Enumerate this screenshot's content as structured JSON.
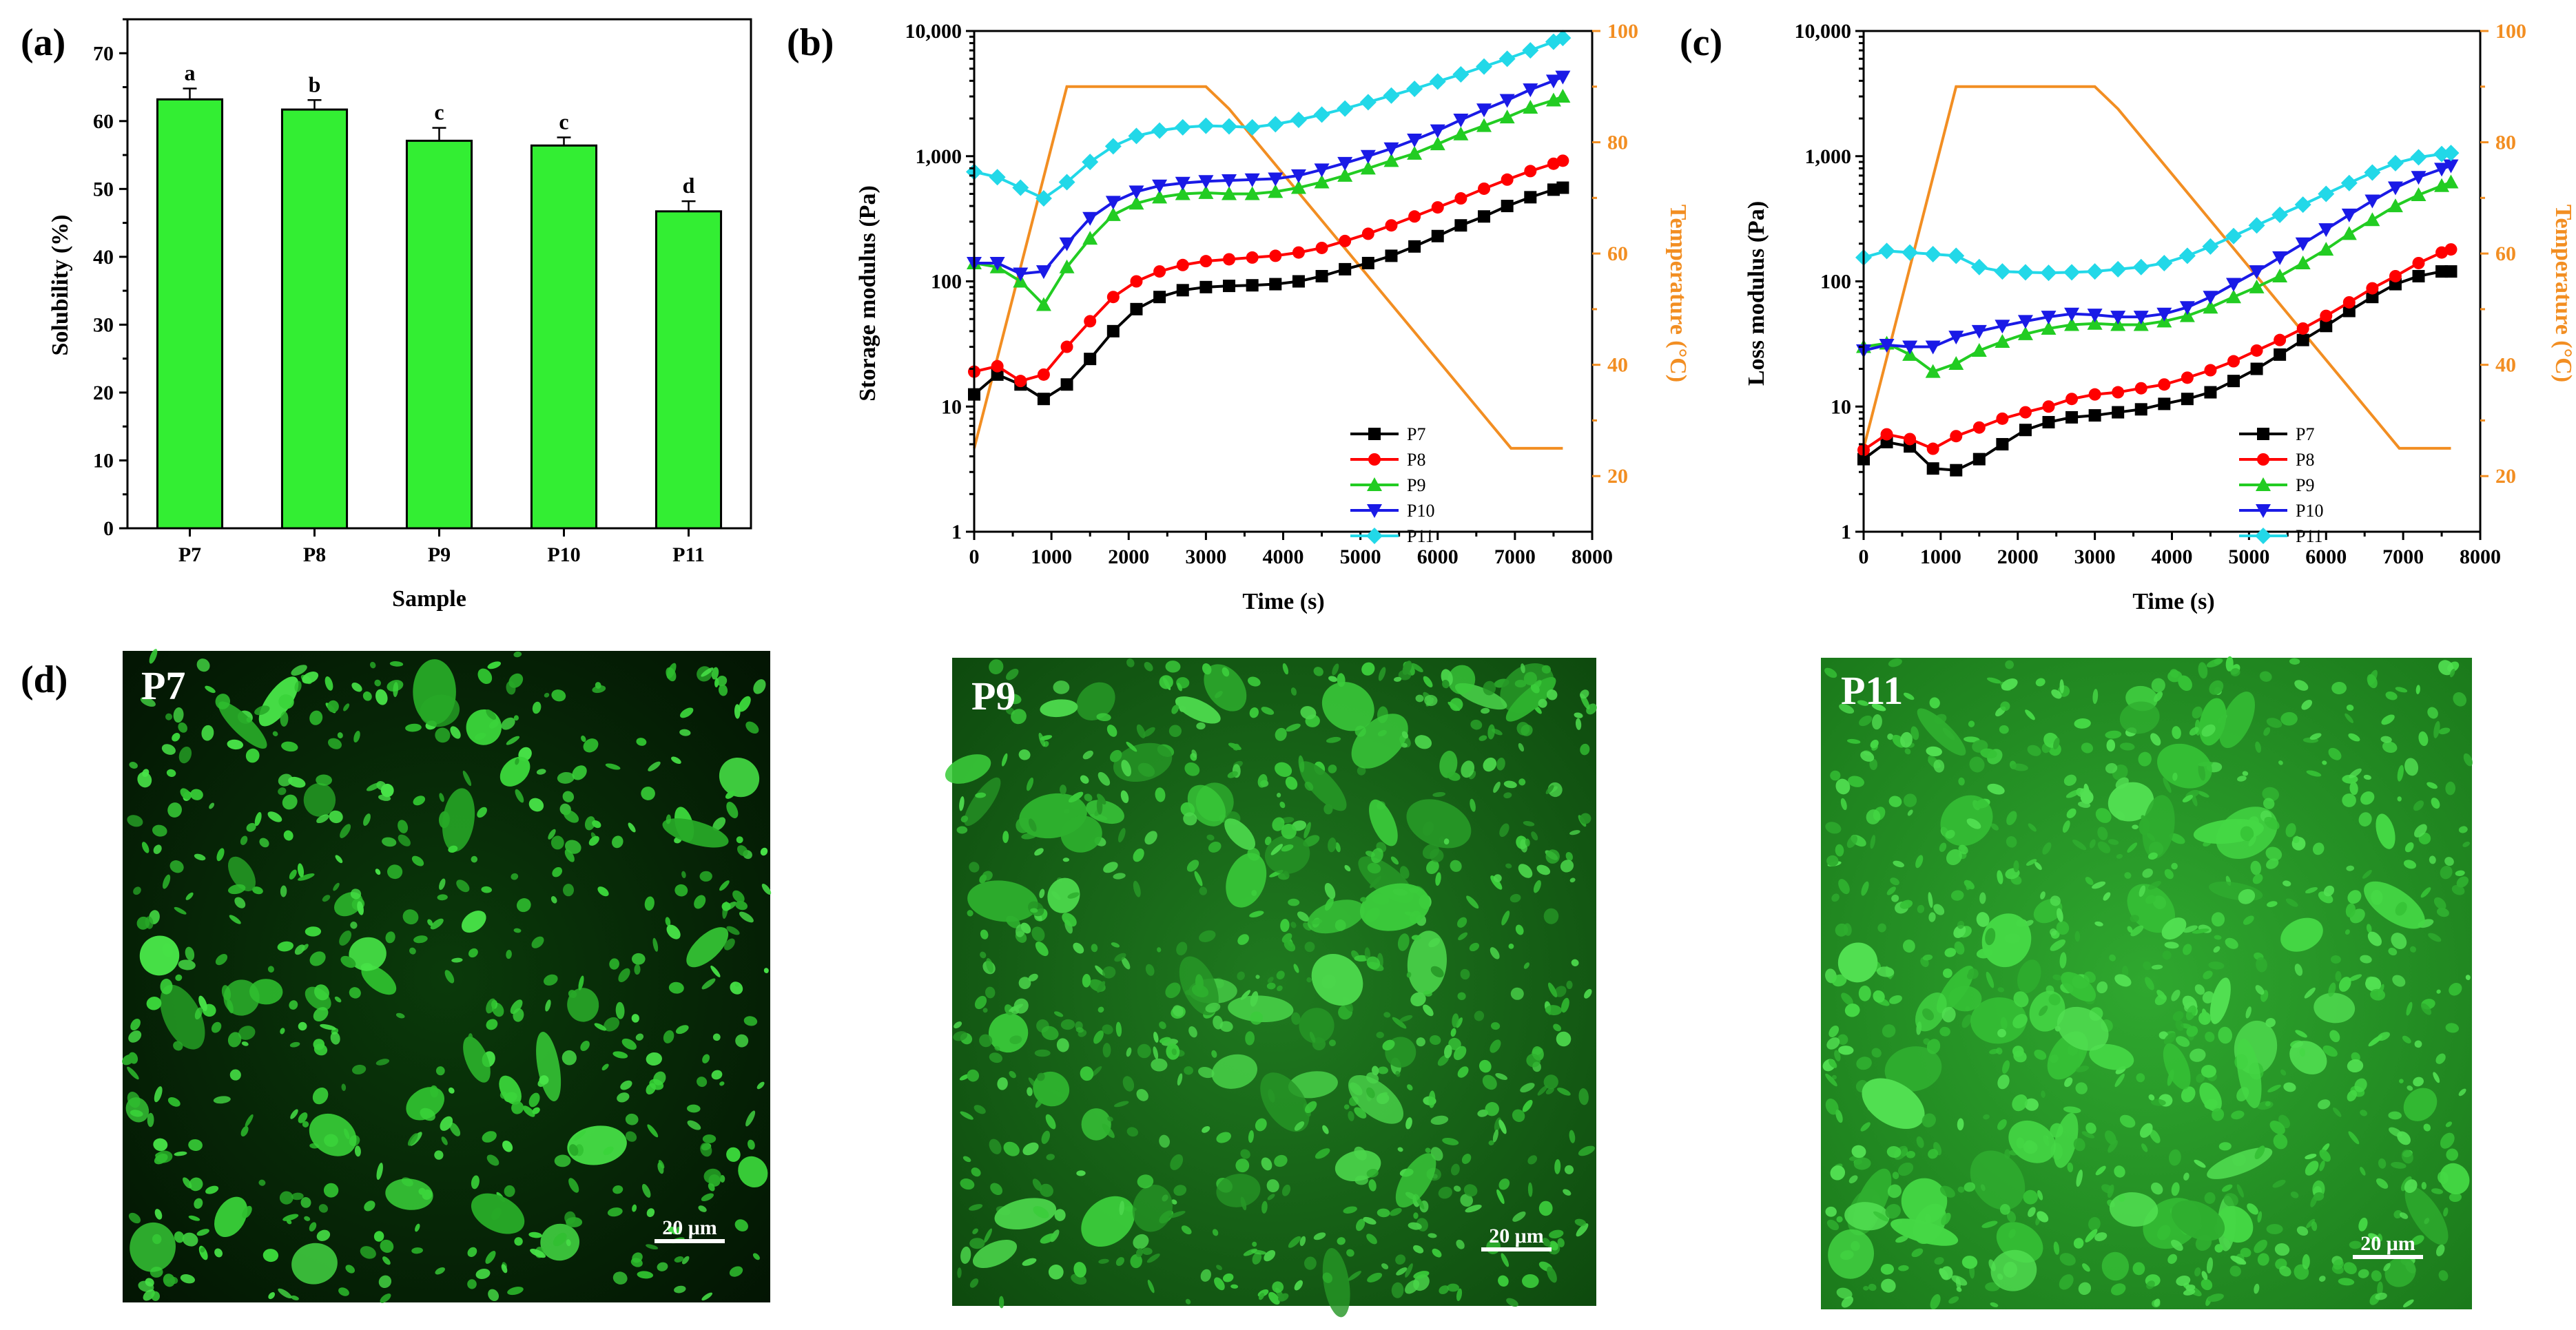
{
  "chart_data": [
    {
      "panel": "(a)",
      "type": "bar",
      "title": "",
      "xlabel": "Sample",
      "ylabel": "Solubility (%)",
      "ylim": [
        0,
        75
      ],
      "yticks": [
        0,
        10,
        20,
        30,
        40,
        50,
        60,
        70
      ],
      "categories": [
        "P7",
        "P8",
        "P9",
        "P10",
        "P11"
      ],
      "values": [
        63.2,
        61.7,
        57.1,
        56.4,
        46.7
      ],
      "errors": [
        1.6,
        1.4,
        1.9,
        1.2,
        1.5
      ],
      "significance_letters": [
        "a",
        "b",
        "c",
        "c",
        "d"
      ],
      "bar_color": "#33ee33"
    },
    {
      "panel": "(b)",
      "type": "line",
      "xlabel": "Time (s)",
      "ylabel": "Storage modulus (Pa)",
      "y2label": "Temperature (°C)",
      "xlim": [
        0,
        8000
      ],
      "ylim": [
        1,
        10000
      ],
      "yscale": "log",
      "y2lim": [
        10,
        100
      ],
      "xticks": [
        0,
        1000,
        2000,
        3000,
        4000,
        5000,
        6000,
        7000,
        8000
      ],
      "yticks": [
        1,
        10,
        100,
        1000,
        10000
      ],
      "yticklabels": [
        "1",
        "10",
        "100",
        "1,000",
        "10,000"
      ],
      "y2ticks": [
        20,
        40,
        60,
        80,
        100
      ],
      "legend_position": "bottom-right",
      "x": [
        0,
        300,
        600,
        900,
        1200,
        1500,
        1800,
        2100,
        2400,
        2700,
        3000,
        3300,
        3600,
        3900,
        4200,
        4500,
        4800,
        5100,
        5400,
        5700,
        6000,
        6300,
        6600,
        6900,
        7200,
        7500,
        7620
      ],
      "series": [
        {
          "name": "P7",
          "color": "#000000",
          "marker": "square",
          "values": [
            12.5,
            18,
            15,
            11.5,
            15,
            24,
            40,
            60,
            75,
            85,
            90,
            92,
            93,
            95,
            100,
            110,
            125,
            140,
            160,
            190,
            230,
            280,
            330,
            400,
            470,
            540,
            560
          ]
        },
        {
          "name": "P8",
          "color": "#ff0000",
          "marker": "circle",
          "values": [
            19,
            21,
            16,
            18,
            30,
            48,
            75,
            100,
            120,
            135,
            145,
            150,
            155,
            160,
            170,
            185,
            210,
            240,
            280,
            330,
            390,
            460,
            550,
            650,
            760,
            870,
            920
          ]
        },
        {
          "name": "P9",
          "color": "#22cc22",
          "marker": "triangle-up",
          "values": [
            140,
            130,
            100,
            65,
            130,
            220,
            340,
            420,
            470,
            500,
            510,
            500,
            500,
            520,
            560,
            620,
            700,
            800,
            920,
            1050,
            1250,
            1500,
            1750,
            2050,
            2450,
            2800,
            3000
          ]
        },
        {
          "name": "P10",
          "color": "#1a1ae6",
          "marker": "triangle-down",
          "values": [
            140,
            140,
            115,
            120,
            200,
            320,
            430,
            520,
            580,
            610,
            630,
            640,
            650,
            660,
            700,
            780,
            880,
            1000,
            1150,
            1350,
            1600,
            1950,
            2350,
            2800,
            3400,
            4000,
            4300
          ]
        },
        {
          "name": "P11",
          "color": "#22d8e8",
          "marker": "diamond",
          "values": [
            750,
            680,
            560,
            460,
            620,
            900,
            1200,
            1450,
            1600,
            1700,
            1750,
            1730,
            1700,
            1800,
            1950,
            2150,
            2400,
            2700,
            3050,
            3450,
            3950,
            4500,
            5200,
            6000,
            7000,
            8200,
            8800
          ]
        }
      ],
      "temperature": {
        "name": "Temperature",
        "color": "#f28e22",
        "x": [
          0,
          1200,
          3000,
          3300,
          6950,
          7000,
          7620
        ],
        "y": [
          25,
          90,
          90,
          86,
          25,
          25,
          25
        ]
      }
    },
    {
      "panel": "(c)",
      "type": "line",
      "xlabel": "Time (s)",
      "ylabel": "Loss modulus (Pa)",
      "y2label": "Temperature (°C)",
      "xlim": [
        0,
        8000
      ],
      "ylim": [
        1,
        10000
      ],
      "yscale": "log",
      "y2lim": [
        10,
        100
      ],
      "xticks": [
        0,
        1000,
        2000,
        3000,
        4000,
        5000,
        6000,
        7000,
        8000
      ],
      "yticks": [
        1,
        10,
        100,
        1000,
        10000
      ],
      "yticklabels": [
        "1",
        "10",
        "100",
        "1,000",
        "10,000"
      ],
      "y2ticks": [
        20,
        40,
        60,
        80,
        100
      ],
      "legend_position": "bottom-right",
      "x": [
        0,
        300,
        600,
        900,
        1200,
        1500,
        1800,
        2100,
        2400,
        2700,
        3000,
        3300,
        3600,
        3900,
        4200,
        4500,
        4800,
        5100,
        5400,
        5700,
        6000,
        6300,
        6600,
        6900,
        7200,
        7500,
        7620
      ],
      "series": [
        {
          "name": "P7",
          "color": "#000000",
          "marker": "square",
          "values": [
            3.8,
            5.2,
            4.8,
            3.2,
            3.1,
            3.8,
            5,
            6.5,
            7.5,
            8.2,
            8.5,
            9,
            9.5,
            10.5,
            11.5,
            13,
            16,
            20,
            26,
            34,
            44,
            58,
            75,
            95,
            110,
            120,
            120
          ]
        },
        {
          "name": "P8",
          "color": "#ff0000",
          "marker": "circle",
          "values": [
            4.5,
            6,
            5.5,
            4.6,
            5.8,
            6.8,
            8,
            9,
            10,
            11.5,
            12.5,
            13,
            14,
            15,
            17,
            19.5,
            23,
            28,
            34,
            42,
            53,
            68,
            88,
            110,
            140,
            170,
            180
          ]
        },
        {
          "name": "P9",
          "color": "#22cc22",
          "marker": "triangle-up",
          "values": [
            30,
            32,
            26,
            19,
            22,
            28,
            33,
            38,
            42,
            45,
            46,
            45,
            45,
            48,
            53,
            62,
            75,
            90,
            110,
            140,
            180,
            240,
            310,
            400,
            490,
            580,
            620
          ]
        },
        {
          "name": "P10",
          "color": "#1a1ae6",
          "marker": "triangle-down",
          "values": [
            28,
            31,
            30,
            30,
            36,
            40,
            44,
            48,
            52,
            55,
            54,
            52,
            52,
            55,
            62,
            75,
            95,
            120,
            155,
            200,
            260,
            340,
            440,
            560,
            680,
            790,
            840
          ]
        },
        {
          "name": "P11",
          "color": "#22d8e8",
          "marker": "diamond",
          "values": [
            155,
            175,
            170,
            165,
            160,
            130,
            120,
            118,
            117,
            118,
            120,
            125,
            130,
            140,
            160,
            190,
            230,
            280,
            340,
            410,
            500,
            610,
            740,
            880,
            980,
            1040,
            1060
          ]
        }
      ],
      "temperature": {
        "name": "Temperature",
        "color": "#f28e22",
        "x": [
          0,
          1200,
          3000,
          3300,
          6950,
          7000,
          7620
        ],
        "y": [
          25,
          90,
          90,
          86,
          25,
          25,
          25
        ]
      }
    }
  ],
  "micrographs": {
    "panel": "(d)",
    "images": [
      {
        "label": "P7",
        "scalebar": "20 μm",
        "density": "sparse"
      },
      {
        "label": "P9",
        "scalebar": "20 μm",
        "density": "medium"
      },
      {
        "label": "P11",
        "scalebar": "20 μm",
        "density": "dense"
      }
    ]
  }
}
